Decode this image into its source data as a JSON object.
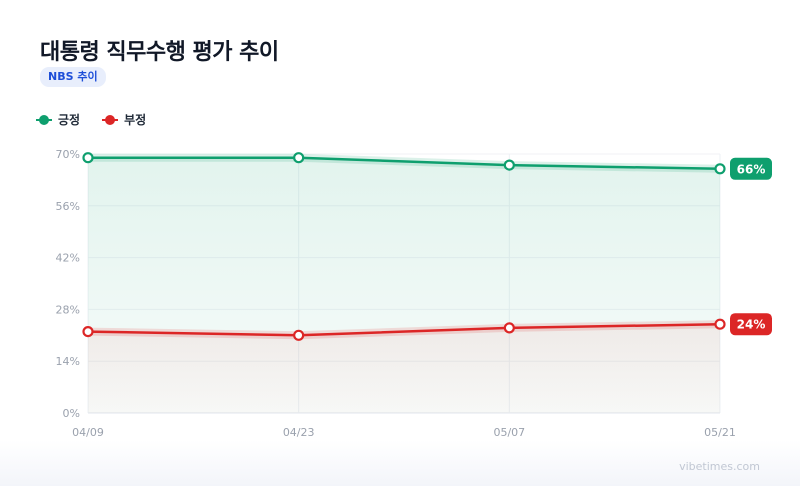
{
  "title": "대통령 직무수행 평가 추이",
  "badge": "NBS 추이",
  "watermark": "vibetimes.com",
  "chart_data": {
    "type": "area",
    "x": [
      "04/09",
      "04/23",
      "05/07",
      "05/21"
    ],
    "ylim": [
      0,
      70
    ],
    "yticks": [
      0,
      14,
      28,
      42,
      56,
      70
    ],
    "ytick_suffix": "%",
    "grid": true,
    "legend": "top-left",
    "series": [
      {
        "name": "긍정",
        "color": "#0e9f6e",
        "values": [
          69,
          69,
          67,
          66
        ],
        "end_label": "66%"
      },
      {
        "name": "부정",
        "color": "#dc2626",
        "values": [
          22,
          21,
          23,
          24
        ],
        "end_label": "24%"
      }
    ]
  }
}
